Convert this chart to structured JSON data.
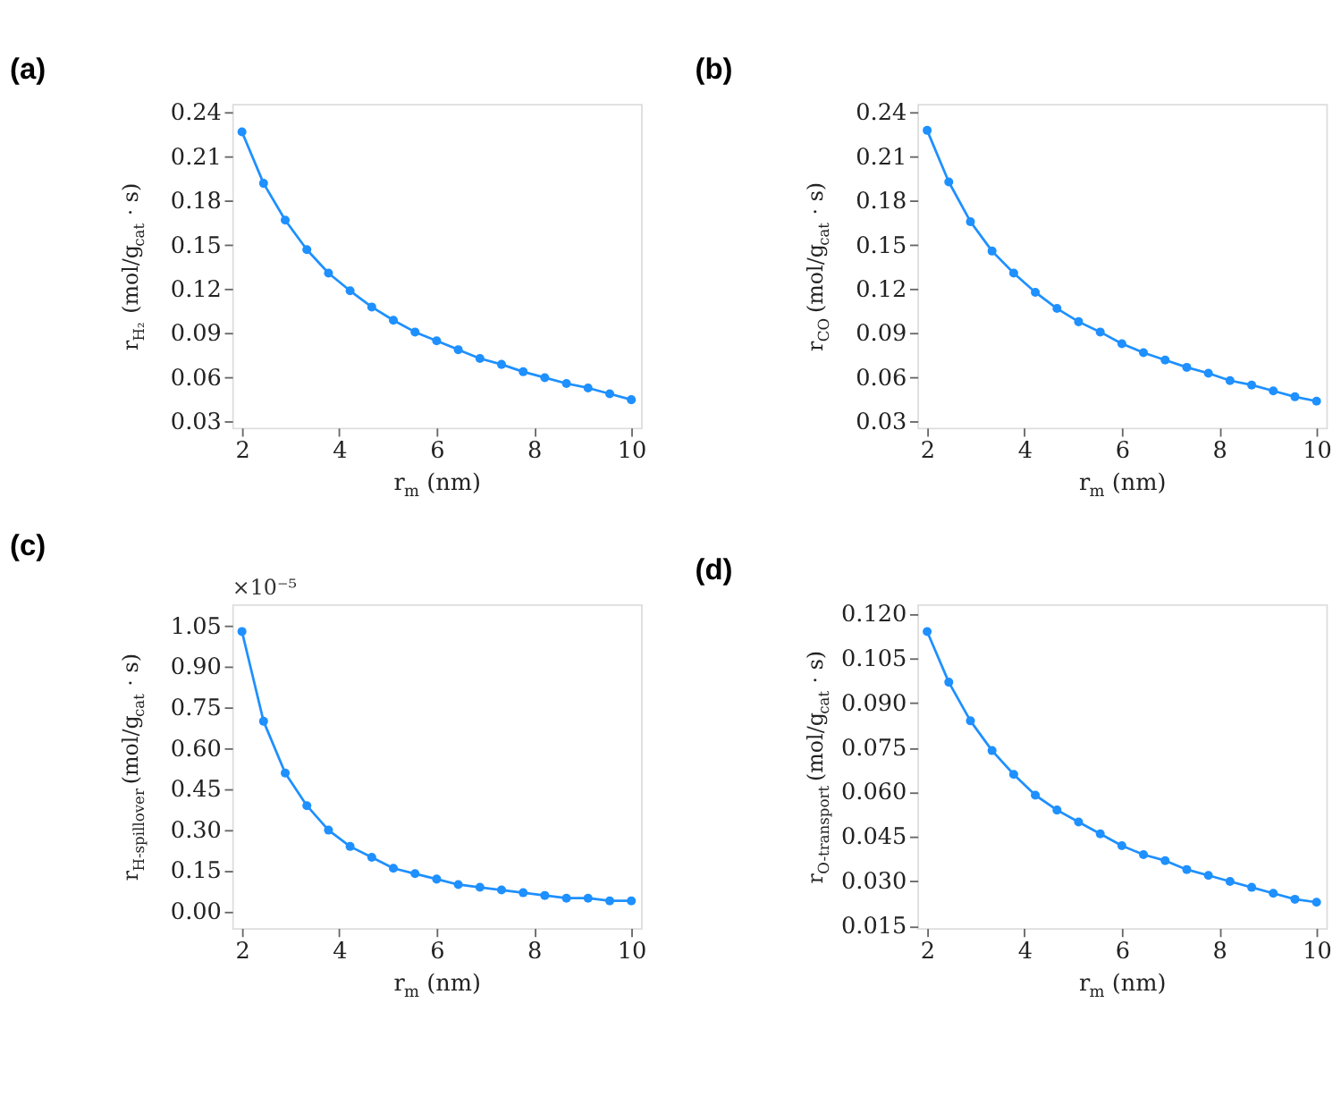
{
  "chart_data": [
    {
      "type": "line",
      "title": "(a)",
      "xlabel": "r$_{m}$ (nm)",
      "ylabel": "r$_{H₂}$ (mol/g$_{cat}$ · s)",
      "marker": "circle",
      "grid": false,
      "x": [
        2,
        2.444,
        2.889,
        3.333,
        3.778,
        4.222,
        4.667,
        5.111,
        5.556,
        6,
        6.444,
        6.889,
        7.333,
        7.778,
        8.222,
        8.667,
        9.111,
        9.556,
        10
      ],
      "series": [
        {
          "color": "#1e90ff",
          "values": [
            0.227,
            0.192,
            0.167,
            0.147,
            0.131,
            0.119,
            0.108,
            0.099,
            0.091,
            0.085,
            0.079,
            0.073,
            0.069,
            0.064,
            0.06,
            0.056,
            0.053,
            0.049,
            0.045
          ]
        }
      ],
      "xlim": [
        1.8,
        10.2
      ],
      "xticks": [
        2,
        4,
        6,
        8,
        10
      ],
      "ylim": [
        0.026,
        0.246
      ],
      "yticks": [
        0.03,
        0.06,
        0.09,
        0.12,
        0.15,
        0.18,
        0.21,
        0.24
      ]
    },
    {
      "type": "line",
      "title": "(b)",
      "xlabel": "r$_{m}$ (nm)",
      "ylabel": "r$_{CO}$ (mol/g$_{cat}$ · s)",
      "marker": "circle",
      "grid": false,
      "x": [
        2,
        2.444,
        2.889,
        3.333,
        3.778,
        4.222,
        4.667,
        5.111,
        5.556,
        6,
        6.444,
        6.889,
        7.333,
        7.778,
        8.222,
        8.667,
        9.111,
        9.556,
        10
      ],
      "series": [
        {
          "color": "#1e90ff",
          "values": [
            0.228,
            0.193,
            0.166,
            0.146,
            0.131,
            0.118,
            0.107,
            0.098,
            0.091,
            0.083,
            0.077,
            0.072,
            0.067,
            0.063,
            0.058,
            0.055,
            0.051,
            0.047,
            0.044
          ]
        }
      ],
      "xlim": [
        1.8,
        10.2
      ],
      "xticks": [
        2,
        4,
        6,
        8,
        10
      ],
      "ylim": [
        0.026,
        0.246
      ],
      "yticks": [
        0.03,
        0.06,
        0.09,
        0.12,
        0.15,
        0.18,
        0.21,
        0.24
      ]
    },
    {
      "type": "line",
      "title": "(c)",
      "xlabel": "r$_{m}$ (nm)",
      "ylabel": "r$_{H-spillover}$ (mol/g$_{cat}$ · s)",
      "annotations": [
        "×10⁻⁵"
      ],
      "marker": "circle",
      "grid": false,
      "x": [
        2,
        2.444,
        2.889,
        3.333,
        3.778,
        4.222,
        4.667,
        5.111,
        5.556,
        6,
        6.444,
        6.889,
        7.333,
        7.778,
        8.222,
        8.667,
        9.111,
        9.556,
        10
      ],
      "series": [
        {
          "color": "#1e90ff",
          "values": [
            1.03,
            0.7,
            0.51,
            0.39,
            0.3,
            0.24,
            0.2,
            0.16,
            0.14,
            0.12,
            0.1,
            0.09,
            0.08,
            0.07,
            0.06,
            0.05,
            0.05,
            0.04,
            0.04
          ]
        }
      ],
      "xlim": [
        1.8,
        10.2
      ],
      "xticks": [
        2,
        4,
        6,
        8,
        10
      ],
      "ylim": [
        -0.06,
        1.13
      ],
      "yticks": [
        {
          "value": 0,
          "label": "0.00"
        },
        0.15,
        {
          "value": 0.3,
          "label": "0.30"
        },
        0.45,
        {
          "value": 0.6,
          "label": "0.60"
        },
        0.75,
        {
          "value": 0.9,
          "label": "0.90"
        },
        1.05
      ]
    },
    {
      "type": "line",
      "title": "(d)",
      "xlabel": "r$_{m}$ (nm)",
      "ylabel": "r$_{O-transport}$ (mol/g$_{cat}$ · s)",
      "marker": "circle",
      "grid": false,
      "x": [
        2,
        2.444,
        2.889,
        3.333,
        3.778,
        4.222,
        4.667,
        5.111,
        5.556,
        6,
        6.444,
        6.889,
        7.333,
        7.778,
        8.222,
        8.667,
        9.111,
        9.556,
        10
      ],
      "series": [
        {
          "color": "#1e90ff",
          "values": [
            0.114,
            0.097,
            0.084,
            0.074,
            0.066,
            0.059,
            0.054,
            0.05,
            0.046,
            0.042,
            0.039,
            0.037,
            0.034,
            0.032,
            0.03,
            0.028,
            0.026,
            0.024,
            0.023
          ]
        }
      ],
      "xlim": [
        1.8,
        10.2
      ],
      "xticks": [
        2,
        4,
        6,
        8,
        10
      ],
      "ylim": [
        0.0143,
        0.1232
      ],
      "yticks": [
        0.015,
        {
          "value": 0.03,
          "label": "0.030"
        },
        0.045,
        {
          "value": 0.06,
          "label": "0.060"
        },
        0.075,
        {
          "value": 0.09,
          "label": "0.090"
        },
        0.105,
        {
          "value": 0.12,
          "label": "0.120"
        }
      ]
    }
  ]
}
